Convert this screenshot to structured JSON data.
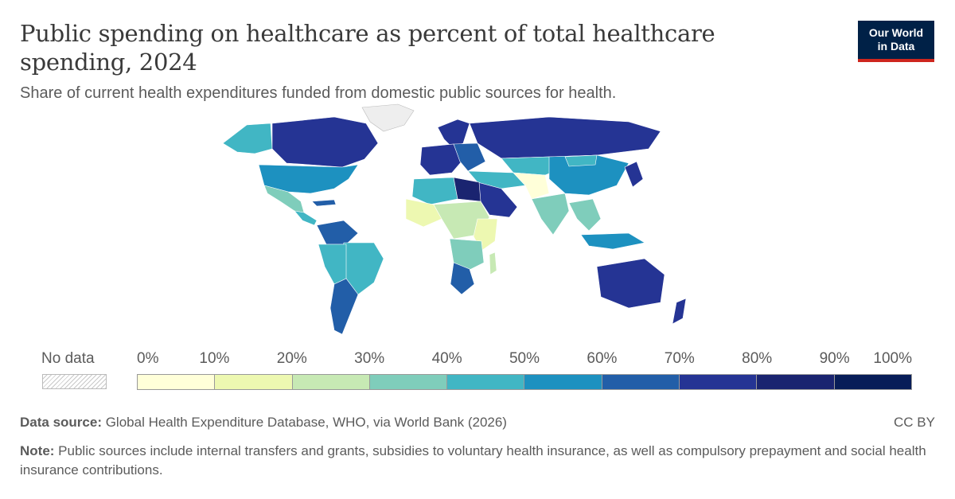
{
  "header": {
    "title": "Public spending on healthcare as percent of total healthcare spending, 2024",
    "subtitle": "Share of current health expenditures funded from domestic public sources for health."
  },
  "logo": {
    "line1": "Our World",
    "line2": "in Data"
  },
  "legend": {
    "no_data_label": "No data",
    "ticks": [
      "0%",
      "10%",
      "20%",
      "30%",
      "40%",
      "50%",
      "60%",
      "70%",
      "80%",
      "90%",
      "100%"
    ],
    "colors": [
      "#ffffd9",
      "#edf8b1",
      "#c7e9b4",
      "#7fcdbb",
      "#41b6c4",
      "#1d91c0",
      "#225ea8",
      "#253494",
      "#1a2470",
      "#081d58"
    ]
  },
  "footer": {
    "source_label": "Data source:",
    "source_text": " Global Health Expenditure Database, WHO, via World Bank (2026)",
    "license": "CC BY",
    "note_label": "Note:",
    "note_text": " Public sources include internal transfers and grants, subsidies to voluntary health insurance, as well as compulsory prepayment and social health insurance contributions."
  }
}
